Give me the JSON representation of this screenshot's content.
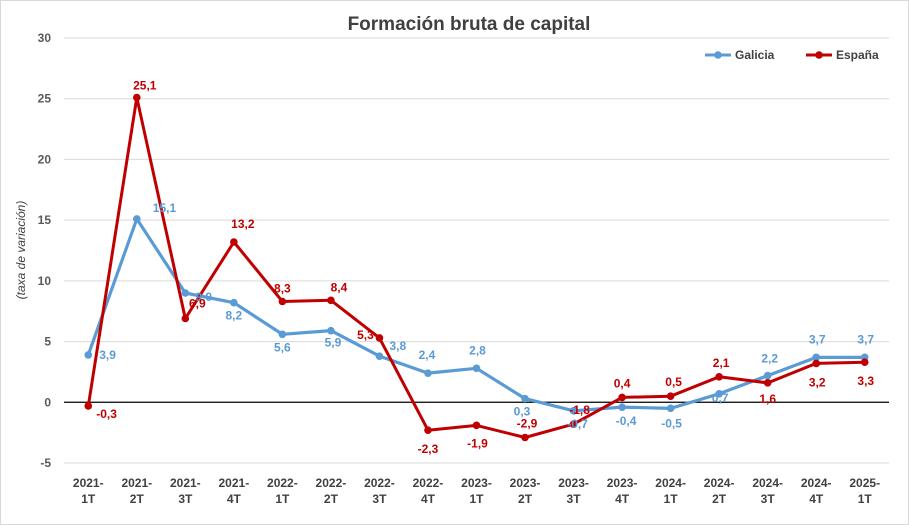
{
  "chart_data": {
    "type": "line",
    "title": "Formación bruta de capital",
    "ylabel": "(taxa de variación)",
    "xlabel": "",
    "ylim": [
      -5,
      30
    ],
    "yticks": [
      -5,
      0,
      5,
      10,
      15,
      20,
      25,
      30
    ],
    "grid": true,
    "legend": "top-right",
    "categories": [
      [
        "2021-",
        "1T"
      ],
      [
        "2021-",
        "2T"
      ],
      [
        "2021-",
        "3T"
      ],
      [
        "2021-",
        "4T"
      ],
      [
        "2022-",
        "1T"
      ],
      [
        "2022-",
        "2T"
      ],
      [
        "2022-",
        "3T"
      ],
      [
        "2022-",
        "4T"
      ],
      [
        "2023-",
        "1T"
      ],
      [
        "2023-",
        "2T"
      ],
      [
        "2023-",
        "3T"
      ],
      [
        "2023-",
        "4T"
      ],
      [
        "2024-",
        "1T"
      ],
      [
        "2024-",
        "2T"
      ],
      [
        "2024-",
        "3T"
      ],
      [
        "2024-",
        "4T"
      ],
      [
        "2025-",
        "1T"
      ]
    ],
    "series": [
      {
        "name": "Galicia",
        "color": "#5b9bd5",
        "values": [
          3.9,
          15.1,
          9.0,
          8.2,
          5.6,
          5.9,
          3.8,
          2.4,
          2.8,
          0.3,
          -0.7,
          -0.4,
          -0.5,
          0.7,
          2.2,
          3.7,
          3.7
        ],
        "labels": [
          "3,9",
          "15,1",
          "9,0",
          "8,2",
          "5,6",
          "5,9",
          "3,8",
          "2,4",
          "2,8",
          "0,3",
          "-0,7",
          "-0,4",
          "-0,5",
          "0,7",
          "2,2",
          "3,7",
          "3,7"
        ]
      },
      {
        "name": "España",
        "color": "#c00000",
        "values": [
          -0.3,
          25.1,
          6.9,
          13.2,
          8.3,
          8.4,
          5.3,
          -2.3,
          -1.9,
          -2.9,
          -1.8,
          0.4,
          0.5,
          2.1,
          1.6,
          3.2,
          3.3
        ],
        "labels": [
          "-0,3",
          "25,1",
          "6,9",
          "13,2",
          "8,3",
          "8,4",
          "5,3",
          "-2,3",
          "-1,9",
          "-2,9",
          "-1,8",
          "0,4",
          "0,5",
          "2,1",
          "1,6",
          "3,2",
          "3,3"
        ]
      }
    ]
  }
}
